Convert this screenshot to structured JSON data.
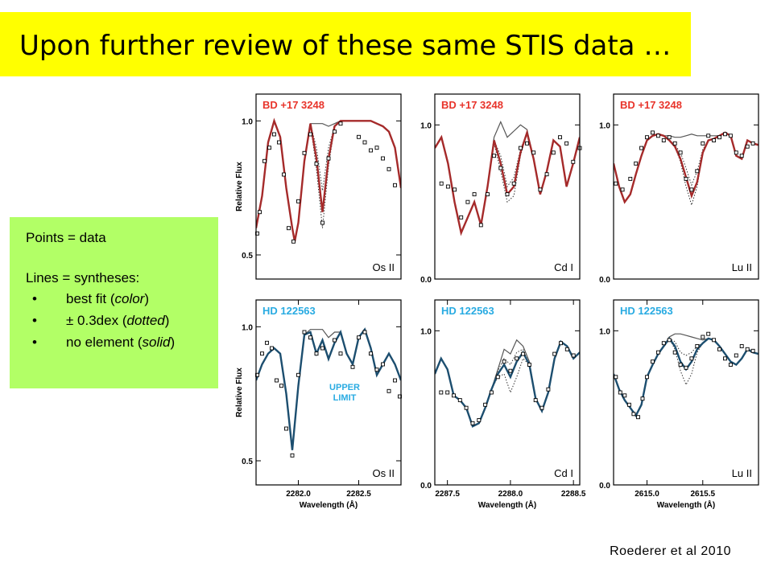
{
  "slide": {
    "title": "Upon further review of these same STIS data …",
    "citation": "Roederer et al 2010",
    "colors": {
      "title_bg": "#ffff00",
      "legend_bg": "#b2ff66"
    }
  },
  "legend": {
    "line1": "Points = data",
    "line2": "Lines = syntheses:",
    "items": [
      {
        "text": "best fit ",
        "em": "color",
        "bullet": "•"
      },
      {
        "text": "± 0.3dex ",
        "em": "dotted",
        "bullet": "•"
      },
      {
        "text": "no element ",
        "em": "solid",
        "bullet": "•"
      }
    ]
  },
  "chart_data": [
    {
      "type": "line",
      "star": "BD +17 3248",
      "species": "Os II",
      "ylabel": "Relative Flux",
      "xlabel": "",
      "xlim": [
        2281.65,
        2282.85
      ],
      "ylim": [
        0.41,
        1.1
      ],
      "xticks": [],
      "yticks": [
        0.5,
        1.0
      ],
      "yticklabels": [
        "0.5",
        "1.0"
      ],
      "color": "#a52a2a",
      "dot_color": "#e8342b",
      "x": [
        2281.65,
        2281.7,
        2281.75,
        2281.8,
        2281.85,
        2281.9,
        2281.95,
        2281.97,
        2282.0,
        2282.05,
        2282.1,
        2282.15,
        2282.2,
        2282.25,
        2282.3,
        2282.35,
        2282.4,
        2282.45,
        2282.5,
        2282.55,
        2282.6,
        2282.65,
        2282.7,
        2282.75,
        2282.8,
        2282.85
      ],
      "fit": [
        0.6,
        0.72,
        0.92,
        1.0,
        0.94,
        0.75,
        0.6,
        0.55,
        0.62,
        0.85,
        0.99,
        0.86,
        0.66,
        0.86,
        0.98,
        1.0,
        1.0,
        1.0,
        1.0,
        1.0,
        1.0,
        0.99,
        0.98,
        0.96,
        0.9,
        0.75
      ],
      "plus": [
        0.6,
        0.72,
        0.92,
        1.0,
        0.94,
        0.75,
        0.6,
        0.55,
        0.62,
        0.85,
        0.99,
        0.82,
        0.6,
        0.83,
        0.98,
        1.0,
        1.0,
        1.0,
        1.0,
        1.0,
        1.0,
        0.99,
        0.98,
        0.96,
        0.9,
        0.75
      ],
      "minus": [
        0.6,
        0.72,
        0.92,
        1.0,
        0.94,
        0.75,
        0.6,
        0.55,
        0.62,
        0.85,
        0.99,
        0.9,
        0.74,
        0.9,
        0.98,
        1.0,
        1.0,
        1.0,
        1.0,
        1.0,
        1.0,
        0.99,
        0.98,
        0.96,
        0.9,
        0.75
      ],
      "none": [
        0.6,
        0.72,
        0.92,
        1.0,
        0.94,
        0.75,
        0.6,
        0.55,
        0.62,
        0.85,
        0.99,
        0.99,
        0.99,
        0.98,
        0.99,
        1.0,
        1.0,
        1.0,
        1.0,
        1.0,
        1.0,
        0.99,
        0.98,
        0.96,
        0.9,
        0.75
      ],
      "points_x": [
        2281.66,
        2281.68,
        2281.72,
        2281.76,
        2281.8,
        2281.84,
        2281.88,
        2281.92,
        2281.96,
        2282.0,
        2282.05,
        2282.1,
        2282.15,
        2282.2,
        2282.25,
        2282.3,
        2282.35,
        2282.5,
        2282.55,
        2282.6,
        2282.65,
        2282.7,
        2282.75,
        2282.8
      ],
      "points_y": [
        0.58,
        0.66,
        0.85,
        0.9,
        0.95,
        0.92,
        0.8,
        0.6,
        0.55,
        0.7,
        0.88,
        0.95,
        0.84,
        0.62,
        0.86,
        0.96,
        0.99,
        0.94,
        0.92,
        0.89,
        0.9,
        0.86,
        0.82,
        0.76
      ]
    },
    {
      "type": "line",
      "star": "BD +17 3248",
      "species": "Cd I",
      "ylabel": "",
      "xlabel": "",
      "xlim": [
        2287.45,
        2288.55
      ],
      "ylim": [
        0.0,
        1.2
      ],
      "xticks": [],
      "yticks": [
        0.0,
        1.0
      ],
      "yticklabels": [
        "0.0",
        "1.0"
      ],
      "color": "#a52a2a",
      "dot_color": "#e8342b",
      "x": [
        2287.45,
        2287.5,
        2287.55,
        2287.6,
        2287.65,
        2287.7,
        2287.75,
        2287.8,
        2287.85,
        2287.9,
        2287.95,
        2288.0,
        2288.05,
        2288.1,
        2288.15,
        2288.2,
        2288.25,
        2288.3,
        2288.35,
        2288.4,
        2288.45,
        2288.5,
        2288.55
      ],
      "fit": [
        0.85,
        0.92,
        0.75,
        0.5,
        0.3,
        0.4,
        0.5,
        0.35,
        0.6,
        0.9,
        0.75,
        0.55,
        0.6,
        0.82,
        0.95,
        0.78,
        0.55,
        0.7,
        0.9,
        0.86,
        0.6,
        0.75,
        0.92
      ],
      "plus": [
        0.85,
        0.92,
        0.75,
        0.5,
        0.3,
        0.4,
        0.5,
        0.35,
        0.6,
        0.88,
        0.7,
        0.5,
        0.54,
        0.8,
        0.95,
        0.78,
        0.55,
        0.7,
        0.9,
        0.86,
        0.6,
        0.75,
        0.92
      ],
      "minus": [
        0.85,
        0.92,
        0.75,
        0.5,
        0.3,
        0.4,
        0.5,
        0.35,
        0.6,
        0.9,
        0.8,
        0.6,
        0.66,
        0.84,
        0.95,
        0.78,
        0.55,
        0.7,
        0.9,
        0.86,
        0.6,
        0.75,
        0.92
      ],
      "none": [
        0.85,
        0.92,
        0.75,
        0.5,
        0.3,
        0.4,
        0.5,
        0.35,
        0.6,
        0.92,
        1.02,
        0.92,
        0.96,
        1.0,
        0.97,
        0.78,
        0.55,
        0.7,
        0.9,
        0.86,
        0.6,
        0.75,
        0.92
      ],
      "points_x": [
        2287.5,
        2287.55,
        2287.6,
        2287.65,
        2287.7,
        2287.75,
        2287.8,
        2287.85,
        2287.9,
        2287.95,
        2288.0,
        2288.05,
        2288.1,
        2288.15,
        2288.2,
        2288.25,
        2288.3,
        2288.35,
        2288.4,
        2288.45,
        2288.5,
        2288.55
      ],
      "points_y": [
        0.62,
        0.6,
        0.58,
        0.4,
        0.5,
        0.55,
        0.35,
        0.55,
        0.8,
        0.72,
        0.55,
        0.62,
        0.85,
        0.88,
        0.82,
        0.58,
        0.68,
        0.82,
        0.92,
        0.88,
        0.76,
        0.85
      ]
    },
    {
      "type": "line",
      "star": "BD +17 3248",
      "species": "Lu II",
      "ylabel": "",
      "xlabel": "",
      "xlim": [
        2614.7,
        2616.0
      ],
      "ylim": [
        0.0,
        1.2
      ],
      "xticks": [],
      "yticks": [
        0.0,
        1.0
      ],
      "yticklabels": [
        "0.0",
        "1.0"
      ],
      "color": "#a52a2a",
      "dot_color": "#e8342b",
      "x": [
        2614.7,
        2614.75,
        2614.8,
        2614.85,
        2614.9,
        2614.95,
        2615.0,
        2615.05,
        2615.1,
        2615.15,
        2615.2,
        2615.25,
        2615.3,
        2615.35,
        2615.4,
        2615.45,
        2615.5,
        2615.55,
        2615.6,
        2615.65,
        2615.7,
        2615.75,
        2615.8,
        2615.85,
        2615.9,
        2615.95,
        2616.0
      ],
      "fit": [
        0.75,
        0.6,
        0.5,
        0.55,
        0.68,
        0.8,
        0.9,
        0.93,
        0.94,
        0.93,
        0.9,
        0.86,
        0.78,
        0.66,
        0.54,
        0.63,
        0.82,
        0.9,
        0.91,
        0.93,
        0.95,
        0.93,
        0.8,
        0.78,
        0.9,
        0.88,
        0.87
      ],
      "plus": [
        0.75,
        0.6,
        0.5,
        0.55,
        0.68,
        0.8,
        0.9,
        0.93,
        0.94,
        0.93,
        0.9,
        0.86,
        0.76,
        0.6,
        0.48,
        0.6,
        0.82,
        0.9,
        0.91,
        0.93,
        0.95,
        0.93,
        0.8,
        0.78,
        0.9,
        0.88,
        0.87
      ],
      "minus": [
        0.75,
        0.6,
        0.5,
        0.55,
        0.68,
        0.8,
        0.9,
        0.93,
        0.94,
        0.93,
        0.9,
        0.87,
        0.82,
        0.72,
        0.61,
        0.7,
        0.84,
        0.9,
        0.91,
        0.93,
        0.95,
        0.93,
        0.8,
        0.78,
        0.9,
        0.88,
        0.87
      ],
      "none": [
        0.75,
        0.6,
        0.5,
        0.55,
        0.68,
        0.8,
        0.9,
        0.93,
        0.94,
        0.93,
        0.93,
        0.92,
        0.92,
        0.93,
        0.94,
        0.93,
        0.93,
        0.93,
        0.93,
        0.93,
        0.95,
        0.93,
        0.8,
        0.78,
        0.9,
        0.88,
        0.87
      ],
      "points_x": [
        2614.72,
        2614.78,
        2614.85,
        2614.9,
        2614.95,
        2615.0,
        2615.05,
        2615.1,
        2615.15,
        2615.2,
        2615.25,
        2615.3,
        2615.35,
        2615.4,
        2615.45,
        2615.5,
        2615.55,
        2615.6,
        2615.65,
        2615.7,
        2615.75,
        2615.8,
        2615.85,
        2615.9,
        2615.95
      ],
      "points_y": [
        0.62,
        0.58,
        0.65,
        0.75,
        0.85,
        0.92,
        0.95,
        0.93,
        0.9,
        0.92,
        0.88,
        0.82,
        0.65,
        0.58,
        0.7,
        0.88,
        0.93,
        0.9,
        0.92,
        0.94,
        0.93,
        0.82,
        0.8,
        0.86,
        0.88
      ]
    },
    {
      "type": "line",
      "star": "HD 122563",
      "species": "Os II",
      "annotation": "UPPER LIMIT",
      "ylabel": "Relative Flux",
      "xlabel": "Wavelength (Å)",
      "xlim": [
        2281.65,
        2282.85
      ],
      "ylim": [
        0.41,
        1.1
      ],
      "xticks": [
        2282.0,
        2282.5
      ],
      "xticklabels": [
        "2282.0",
        "2282.5"
      ],
      "yticks": [
        0.5,
        1.0
      ],
      "yticklabels": [
        "0.5",
        "1.0"
      ],
      "color": "#1c4e6f",
      "dot_color": "#29abe2",
      "x": [
        2281.65,
        2281.7,
        2281.75,
        2281.8,
        2281.85,
        2281.9,
        2281.95,
        2282.0,
        2282.05,
        2282.1,
        2282.15,
        2282.2,
        2282.25,
        2282.3,
        2282.35,
        2282.4,
        2282.45,
        2282.5,
        2282.55,
        2282.6,
        2282.65,
        2282.7,
        2282.75,
        2282.8,
        2282.85
      ],
      "fit": [
        0.8,
        0.86,
        0.9,
        0.92,
        0.9,
        0.75,
        0.54,
        0.78,
        0.97,
        0.98,
        0.9,
        0.95,
        0.88,
        0.94,
        0.98,
        0.9,
        0.86,
        0.96,
        0.99,
        0.92,
        0.82,
        0.86,
        0.9,
        0.86,
        0.8
      ],
      "plus": [
        0.8,
        0.86,
        0.9,
        0.92,
        0.9,
        0.75,
        0.54,
        0.78,
        0.97,
        0.98,
        0.9,
        0.95,
        0.88,
        0.94,
        0.98,
        0.9,
        0.86,
        0.96,
        0.99,
        0.92,
        0.82,
        0.86,
        0.9,
        0.86,
        0.8
      ],
      "minus": [
        0.8,
        0.86,
        0.9,
        0.92,
        0.9,
        0.75,
        0.54,
        0.78,
        0.97,
        0.98,
        0.9,
        0.95,
        0.88,
        0.94,
        0.98,
        0.9,
        0.86,
        0.96,
        0.99,
        0.92,
        0.82,
        0.86,
        0.9,
        0.86,
        0.8
      ],
      "none": [
        0.8,
        0.86,
        0.9,
        0.92,
        0.9,
        0.75,
        0.54,
        0.78,
        0.97,
        0.99,
        0.99,
        0.99,
        0.96,
        0.98,
        0.98,
        0.9,
        0.86,
        0.96,
        0.99,
        0.92,
        0.82,
        0.86,
        0.9,
        0.86,
        0.8
      ],
      "points_x": [
        2281.66,
        2281.7,
        2281.74,
        2281.78,
        2281.82,
        2281.86,
        2281.9,
        2281.95,
        2282.0,
        2282.05,
        2282.1,
        2282.15,
        2282.2,
        2282.3,
        2282.35,
        2282.45,
        2282.5,
        2282.55,
        2282.6,
        2282.65,
        2282.7,
        2282.75,
        2282.8,
        2282.84
      ],
      "points_y": [
        0.82,
        0.9,
        0.94,
        0.92,
        0.8,
        0.78,
        0.62,
        0.52,
        0.82,
        0.98,
        0.96,
        0.9,
        0.92,
        0.95,
        0.9,
        0.85,
        0.96,
        0.98,
        0.9,
        0.84,
        0.86,
        0.76,
        0.8,
        0.74
      ]
    },
    {
      "type": "line",
      "star": "HD 122563",
      "species": "Cd I",
      "ylabel": "",
      "xlabel": "Wavelength (Å)",
      "xlim": [
        2287.4,
        2288.55
      ],
      "ylim": [
        0.0,
        1.2
      ],
      "xticks": [
        2287.5,
        2288.0,
        2288.5
      ],
      "xticklabels": [
        "2287.5",
        "2288.0",
        "2288.5"
      ],
      "yticks": [
        0.0,
        1.0
      ],
      "yticklabels": [
        "0.0",
        "1.0"
      ],
      "color": "#1c4e6f",
      "dot_color": "#29abe2",
      "x": [
        2287.4,
        2287.45,
        2287.5,
        2287.55,
        2287.6,
        2287.65,
        2287.7,
        2287.75,
        2287.8,
        2287.85,
        2287.9,
        2287.95,
        2288.0,
        2288.05,
        2288.1,
        2288.15,
        2288.2,
        2288.25,
        2288.3,
        2288.35,
        2288.4,
        2288.45,
        2288.5,
        2288.55
      ],
      "fit": [
        0.72,
        0.82,
        0.75,
        0.58,
        0.55,
        0.5,
        0.38,
        0.4,
        0.5,
        0.62,
        0.72,
        0.78,
        0.7,
        0.8,
        0.86,
        0.78,
        0.56,
        0.48,
        0.6,
        0.82,
        0.93,
        0.9,
        0.82,
        0.86
      ],
      "plus": [
        0.72,
        0.82,
        0.75,
        0.58,
        0.55,
        0.5,
        0.38,
        0.4,
        0.5,
        0.62,
        0.7,
        0.72,
        0.6,
        0.7,
        0.82,
        0.78,
        0.56,
        0.48,
        0.6,
        0.82,
        0.93,
        0.9,
        0.82,
        0.86
      ],
      "minus": [
        0.72,
        0.82,
        0.75,
        0.58,
        0.55,
        0.5,
        0.38,
        0.4,
        0.5,
        0.62,
        0.74,
        0.82,
        0.78,
        0.86,
        0.88,
        0.78,
        0.56,
        0.48,
        0.6,
        0.82,
        0.93,
        0.9,
        0.82,
        0.86
      ],
      "none": [
        0.72,
        0.82,
        0.75,
        0.58,
        0.55,
        0.5,
        0.38,
        0.4,
        0.5,
        0.62,
        0.75,
        0.88,
        0.85,
        0.94,
        0.9,
        0.8,
        0.56,
        0.48,
        0.6,
        0.82,
        0.93,
        0.9,
        0.82,
        0.86
      ],
      "points_x": [
        2287.45,
        2287.5,
        2287.55,
        2287.6,
        2287.65,
        2287.7,
        2287.75,
        2287.8,
        2287.85,
        2287.9,
        2287.95,
        2288.0,
        2288.05,
        2288.1,
        2288.15,
        2288.2,
        2288.25,
        2288.3,
        2288.35,
        2288.4,
        2288.45,
        2288.5
      ],
      "points_y": [
        0.6,
        0.6,
        0.58,
        0.55,
        0.5,
        0.4,
        0.42,
        0.52,
        0.6,
        0.7,
        0.8,
        0.74,
        0.82,
        0.85,
        0.78,
        0.55,
        0.5,
        0.62,
        0.85,
        0.92,
        0.88,
        0.84
      ]
    },
    {
      "type": "line",
      "star": "HD 122563",
      "species": "Lu II",
      "ylabel": "",
      "xlabel": "Wavelength (Å)",
      "xlim": [
        2614.7,
        2616.0
      ],
      "ylim": [
        0.0,
        1.2
      ],
      "xticks": [
        2615.0,
        2615.5
      ],
      "xticklabels": [
        "2615.0",
        "2615.5"
      ],
      "yticks": [
        0.0,
        1.0
      ],
      "yticklabels": [
        "0.0",
        "1.0"
      ],
      "color": "#1c4e6f",
      "dot_color": "#29abe2",
      "x": [
        2614.7,
        2614.75,
        2614.8,
        2614.85,
        2614.9,
        2614.95,
        2615.0,
        2615.05,
        2615.1,
        2615.15,
        2615.2,
        2615.25,
        2615.3,
        2615.35,
        2615.4,
        2615.45,
        2615.5,
        2615.55,
        2615.6,
        2615.65,
        2615.7,
        2615.75,
        2615.8,
        2615.85,
        2615.9,
        2615.95,
        2616.0
      ],
      "fit": [
        0.72,
        0.62,
        0.55,
        0.5,
        0.45,
        0.52,
        0.7,
        0.78,
        0.85,
        0.9,
        0.95,
        0.9,
        0.8,
        0.75,
        0.8,
        0.88,
        0.92,
        0.95,
        0.94,
        0.9,
        0.85,
        0.8,
        0.78,
        0.82,
        0.88,
        0.86,
        0.85
      ],
      "plus": [
        0.72,
        0.62,
        0.55,
        0.5,
        0.45,
        0.52,
        0.7,
        0.78,
        0.85,
        0.9,
        0.95,
        0.88,
        0.74,
        0.65,
        0.72,
        0.86,
        0.92,
        0.95,
        0.94,
        0.9,
        0.85,
        0.8,
        0.78,
        0.82,
        0.88,
        0.86,
        0.85
      ],
      "minus": [
        0.72,
        0.62,
        0.55,
        0.5,
        0.45,
        0.52,
        0.7,
        0.78,
        0.85,
        0.9,
        0.95,
        0.93,
        0.86,
        0.84,
        0.86,
        0.9,
        0.92,
        0.95,
        0.94,
        0.9,
        0.85,
        0.8,
        0.78,
        0.82,
        0.88,
        0.86,
        0.85
      ],
      "none": [
        0.72,
        0.62,
        0.55,
        0.5,
        0.45,
        0.52,
        0.7,
        0.78,
        0.85,
        0.9,
        0.96,
        0.98,
        0.98,
        0.97,
        0.96,
        0.95,
        0.94,
        0.95,
        0.94,
        0.9,
        0.85,
        0.8,
        0.78,
        0.82,
        0.88,
        0.86,
        0.85
      ],
      "points_x": [
        2614.72,
        2614.76,
        2614.8,
        2614.84,
        2614.88,
        2614.92,
        2614.96,
        2615.0,
        2615.05,
        2615.1,
        2615.15,
        2615.2,
        2615.25,
        2615.3,
        2615.35,
        2615.4,
        2615.45,
        2615.5,
        2615.55,
        2615.6,
        2615.65,
        2615.7,
        2615.75,
        2615.8,
        2615.85,
        2615.9,
        2615.95
      ],
      "points_y": [
        0.7,
        0.6,
        0.58,
        0.52,
        0.46,
        0.44,
        0.56,
        0.7,
        0.8,
        0.86,
        0.92,
        0.94,
        0.86,
        0.78,
        0.76,
        0.82,
        0.9,
        0.96,
        0.98,
        0.94,
        0.88,
        0.82,
        0.78,
        0.84,
        0.9,
        0.88,
        0.87
      ]
    }
  ]
}
